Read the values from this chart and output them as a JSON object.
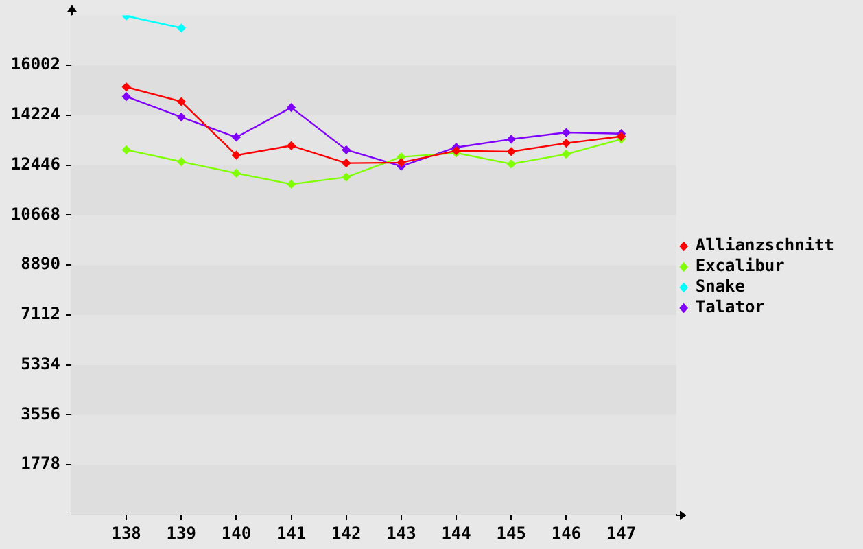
{
  "chart_data": {
    "type": "line",
    "x": [
      138,
      139,
      140,
      141,
      142,
      143,
      144,
      145,
      146,
      147
    ],
    "xlim": [
      137,
      148
    ],
    "xticks": [
      138,
      139,
      140,
      141,
      142,
      143,
      144,
      145,
      146,
      147
    ],
    "ylim": [
      0,
      17780
    ],
    "yticks": [
      1778,
      3556,
      5334,
      7112,
      8890,
      10668,
      12446,
      14224,
      16002
    ],
    "legend": "right",
    "marker": "diamond",
    "series": [
      {
        "name": "Allianzschnitt",
        "color": "#ff0000",
        "values": [
          15230,
          14710,
          12800,
          13140,
          12520,
          12540,
          12960,
          12930,
          13230,
          13470
        ]
      },
      {
        "name": "Excalibur",
        "color": "#80ff00",
        "values": [
          12990,
          12570,
          12160,
          11770,
          12020,
          12740,
          12880,
          12490,
          12840,
          13370
        ]
      },
      {
        "name": "Snake",
        "color": "#00ffff",
        "values": [
          17760,
          17330,
          null,
          null,
          null,
          null,
          null,
          null,
          null,
          null
        ]
      },
      {
        "name": "Talator",
        "color": "#8000ff",
        "values": [
          14890,
          14160,
          13440,
          14500,
          12990,
          12410,
          13080,
          13370,
          13610,
          13570
        ]
      }
    ]
  }
}
